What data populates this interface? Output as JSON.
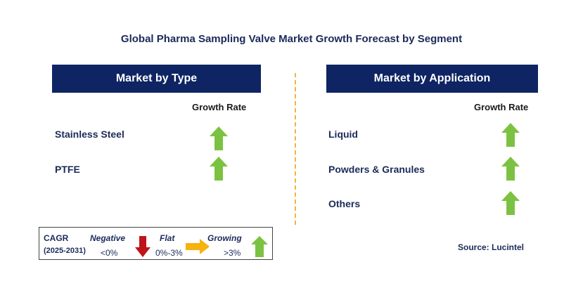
{
  "title": "Global Pharma Sampling Valve Market Growth Forecast by Segment",
  "left_panel": {
    "header": "Market by Type",
    "growth_label": "Growth Rate",
    "items": [
      {
        "label": "Stainless Steel",
        "trend": "growing"
      },
      {
        "label": "PTFE",
        "trend": "growing"
      }
    ]
  },
  "right_panel": {
    "header": "Market by Application",
    "growth_label": "Growth Rate",
    "items": [
      {
        "label": "Liquid",
        "trend": "growing"
      },
      {
        "label": "Powders & Granules",
        "trend": "growing"
      },
      {
        "label": "Others",
        "trend": "growing"
      }
    ]
  },
  "legend": {
    "cagr_label": "CAGR",
    "period": "(2025-2031)",
    "negative_label": "Negative",
    "negative_range": "<0%",
    "flat_label": "Flat",
    "flat_range": "0%-3%",
    "growing_label": "Growing",
    "growing_range": ">3%"
  },
  "source": "Source: Lucintel",
  "colors": {
    "header_bg": "#0e2463",
    "growing": "#7cc242",
    "negative": "#c0141b",
    "flat": "#f6b20f",
    "divider": "#f2b43a"
  }
}
